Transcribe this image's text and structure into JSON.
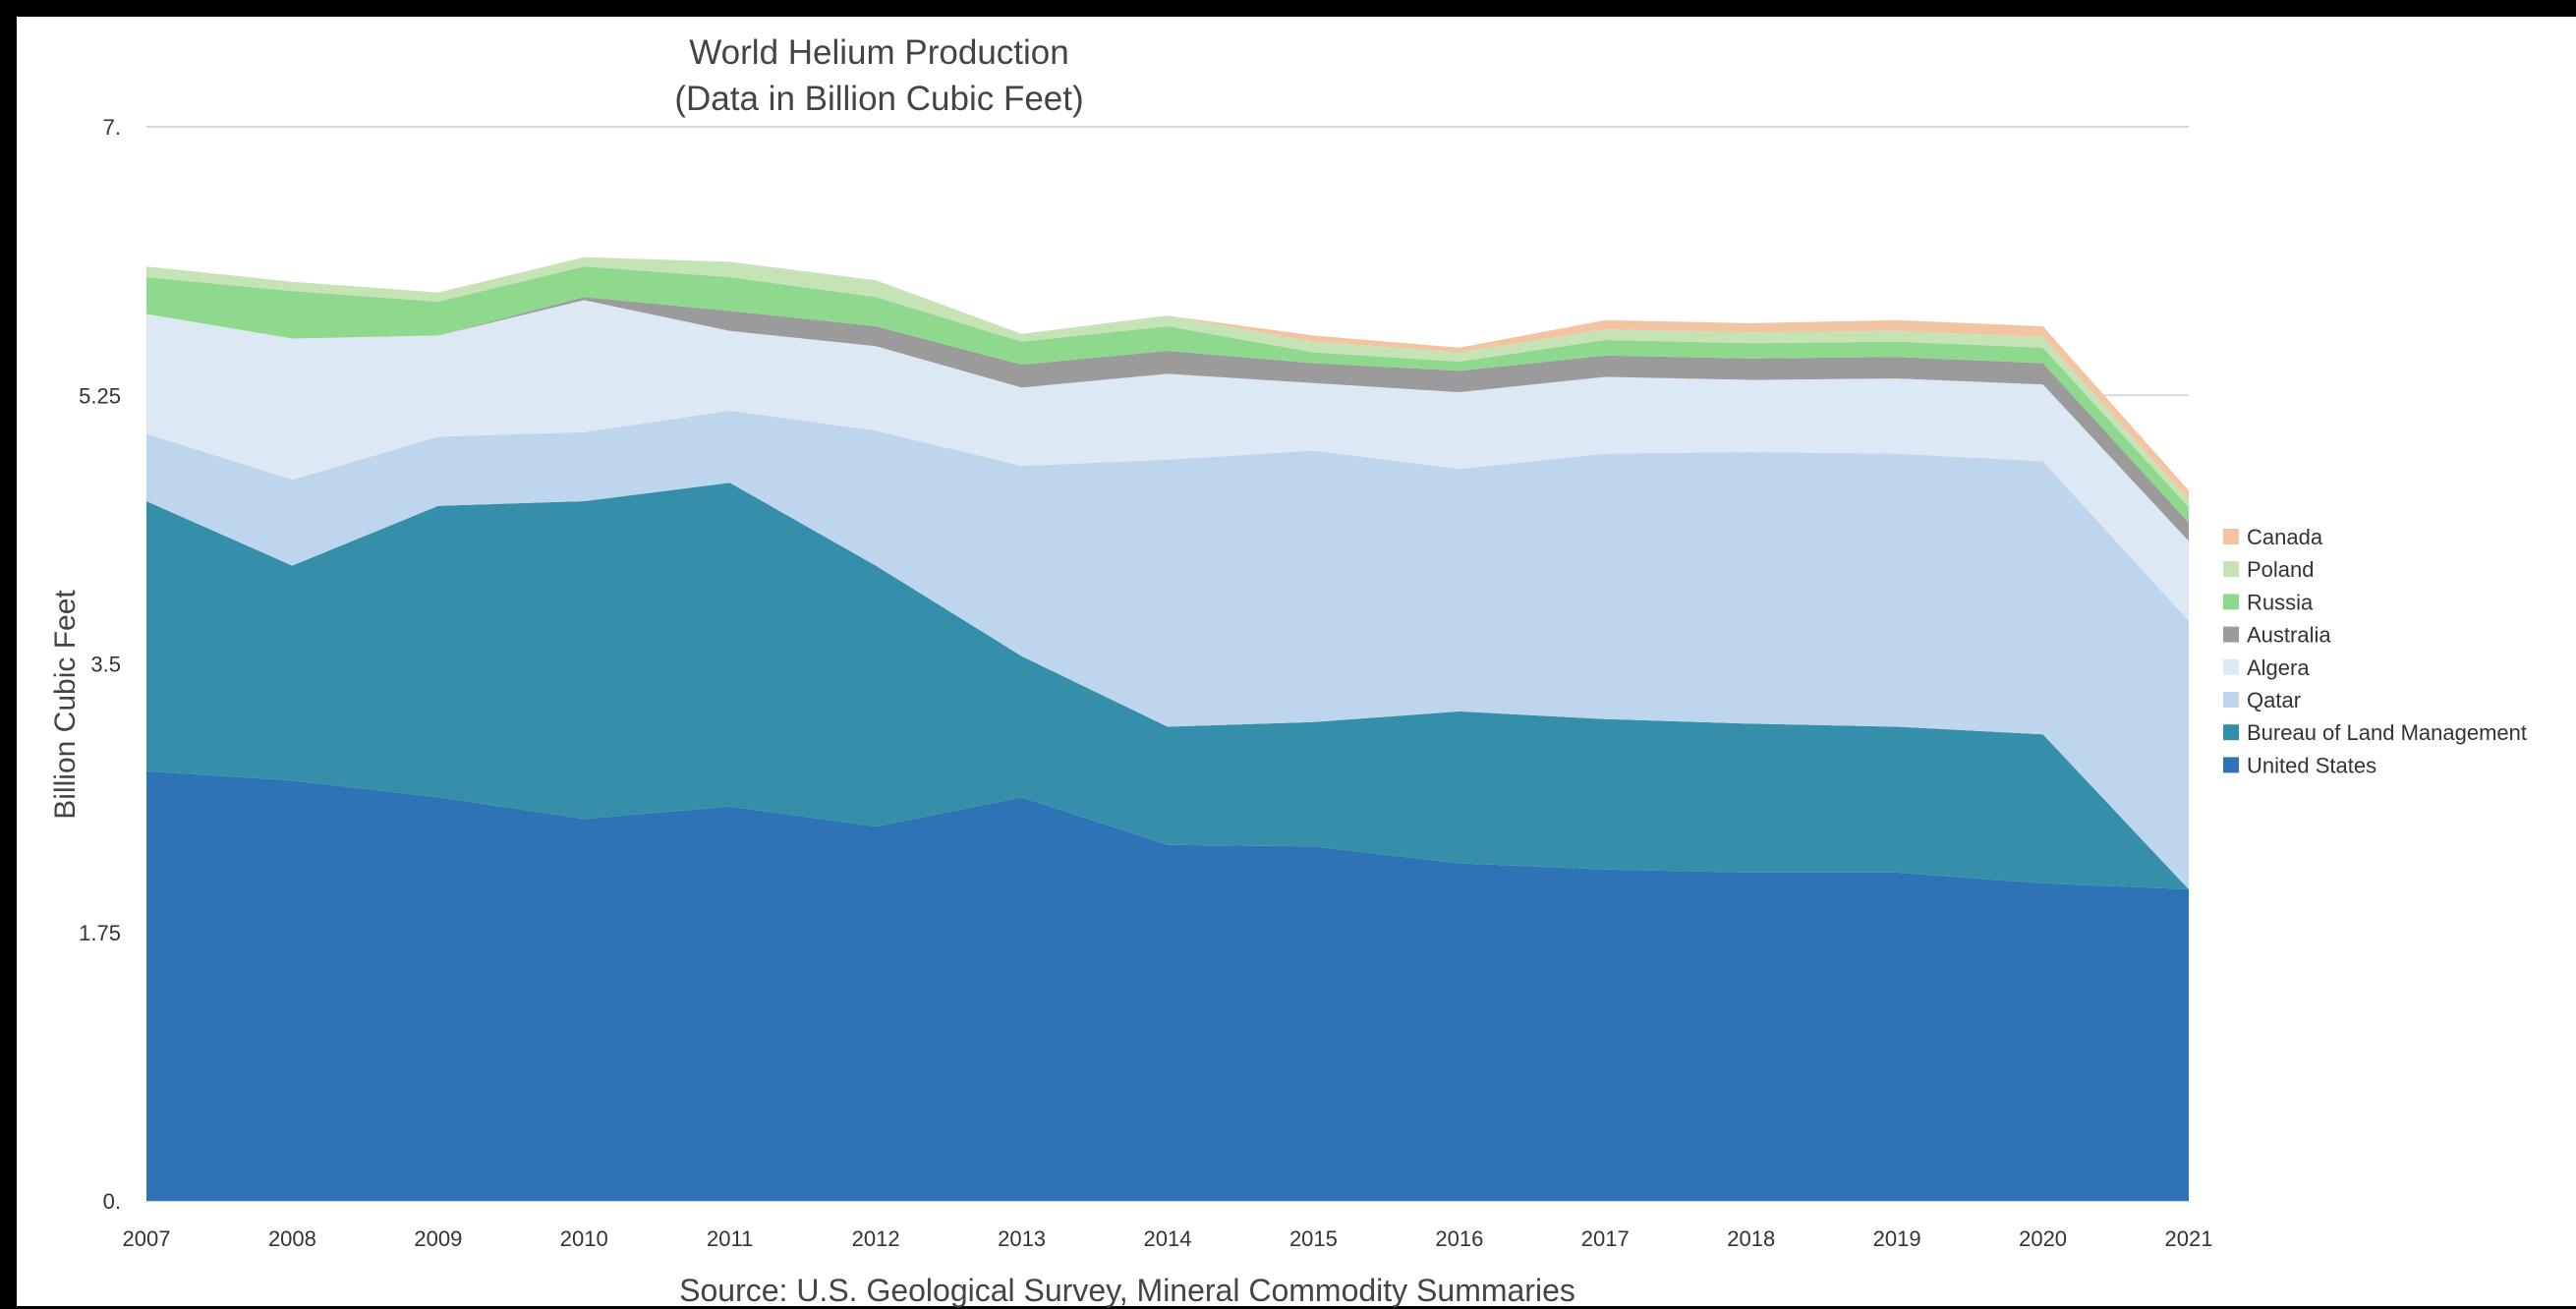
{
  "chart_data": {
    "type": "area",
    "stacked": true,
    "title": "World Helium Production",
    "subtitle": "(Data in Billion Cubic Feet)",
    "source": "Source: U.S. Geological Survey, Mineral Commodity Summaries",
    "ylabel": "Billion Cubic Feet",
    "xlabel": "",
    "ylim": [
      0,
      7
    ],
    "yticks": [
      0,
      1.75,
      3.5,
      5.25,
      7
    ],
    "ytick_labels": [
      "0.",
      "1.75",
      "3.5",
      "5.25",
      "7."
    ],
    "categories": [
      "2007",
      "2008",
      "2009",
      "2010",
      "2011",
      "2012",
      "2013",
      "2014",
      "2015",
      "2016",
      "2017",
      "2018",
      "2019",
      "2020",
      "2021"
    ],
    "legend_position": "right",
    "series": [
      {
        "name": "United States",
        "color": "#2E73B5",
        "values": [
          2.8,
          2.74,
          2.63,
          2.49,
          2.57,
          2.44,
          2.63,
          2.32,
          2.31,
          2.2,
          2.16,
          2.14,
          2.14,
          2.07,
          2.03
        ]
      },
      {
        "name": "Bureau of Land Management",
        "color": "#358FAA",
        "values": [
          1.76,
          1.4,
          1.9,
          2.07,
          2.11,
          1.7,
          0.92,
          0.77,
          0.81,
          0.99,
          0.98,
          0.97,
          0.95,
          0.97,
          0.0
        ]
      },
      {
        "name": "Qatar",
        "color": "#BDD5ED",
        "values": [
          0.44,
          0.56,
          0.45,
          0.45,
          0.47,
          0.88,
          1.24,
          1.74,
          1.77,
          1.58,
          1.73,
          1.77,
          1.78,
          1.78,
          1.75
        ]
      },
      {
        "name": "Algera",
        "color": "#DDE8F5",
        "values": [
          0.78,
          0.92,
          0.66,
          0.86,
          0.52,
          0.55,
          0.51,
          0.56,
          0.44,
          0.5,
          0.5,
          0.47,
          0.49,
          0.5,
          0.52
        ]
      },
      {
        "name": "Australia",
        "color": "#9B9B9B",
        "values": [
          0.0,
          0.0,
          0.0,
          0.02,
          0.13,
          0.13,
          0.15,
          0.15,
          0.13,
          0.14,
          0.14,
          0.14,
          0.14,
          0.14,
          0.12
        ]
      },
      {
        "name": "Russia",
        "color": "#8ED98E",
        "values": [
          0.24,
          0.31,
          0.22,
          0.2,
          0.22,
          0.19,
          0.15,
          0.16,
          0.07,
          0.06,
          0.1,
          0.1,
          0.1,
          0.1,
          0.1
        ]
      },
      {
        "name": "Poland",
        "color": "#C5E3B4",
        "values": [
          0.07,
          0.06,
          0.06,
          0.06,
          0.1,
          0.11,
          0.05,
          0.07,
          0.07,
          0.06,
          0.07,
          0.07,
          0.07,
          0.07,
          0.05
        ]
      },
      {
        "name": "Canada",
        "color": "#F3C4A2",
        "values": [
          0.0,
          0.0,
          0.0,
          0.0,
          0.0,
          0.0,
          0.0,
          0.0,
          0.04,
          0.03,
          0.06,
          0.06,
          0.07,
          0.07,
          0.06
        ]
      }
    ]
  }
}
